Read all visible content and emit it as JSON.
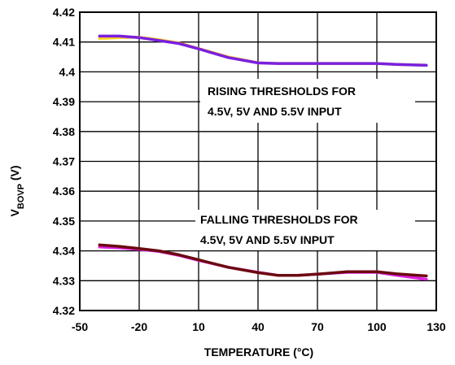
{
  "chart_data": {
    "type": "line",
    "title": "",
    "xlabel": "TEMPERATURE (°C)",
    "ylabel_main": "V",
    "ylabel_sub": "BOVP",
    "ylabel_unit": " (V)",
    "xlim": [
      -50,
      130
    ],
    "ylim": [
      4.32,
      4.42
    ],
    "x_ticks": [
      -50,
      -20,
      10,
      40,
      70,
      100,
      130
    ],
    "x_tick_labels": [
      "-50",
      "-20",
      "10",
      "40",
      "70",
      "100",
      "130"
    ],
    "y_ticks": [
      4.32,
      4.33,
      4.34,
      4.35,
      4.36,
      4.37,
      4.38,
      4.39,
      4.4,
      4.41,
      4.42
    ],
    "y_tick_labels": [
      "4.32",
      "4.33",
      "4.34",
      "4.35",
      "4.36",
      "4.37",
      "4.38",
      "4.39",
      "4.4",
      "4.41",
      "4.42"
    ],
    "grid": true,
    "series": [
      {
        "color": "#FFD21E",
        "x": [
          -40,
          -30,
          -20,
          -10,
          0,
          10,
          25,
          40,
          50,
          60,
          70,
          85,
          100,
          110,
          125
        ],
        "y": [
          4.4112,
          4.4115,
          4.4116,
          4.4108,
          4.4097,
          4.4078,
          4.405,
          4.403,
          4.4028,
          4.4028,
          4.4028,
          4.4028,
          4.4028,
          4.4025,
          4.4022
        ]
      },
      {
        "color": "#7A1FE0",
        "x": [
          -40,
          -30,
          -20,
          -10,
          0,
          10,
          25,
          40,
          50,
          60,
          70,
          85,
          100,
          110,
          125
        ],
        "y": [
          4.412,
          4.412,
          4.4115,
          4.4105,
          4.4095,
          4.4077,
          4.4048,
          4.403,
          4.4028,
          4.4028,
          4.4028,
          4.4028,
          4.4028,
          4.4025,
          4.4022
        ]
      },
      {
        "color": "#E020E0",
        "x": [
          -40,
          -30,
          -20,
          -10,
          0,
          10,
          25,
          40,
          50,
          60,
          70,
          85,
          100,
          110,
          125
        ],
        "y": [
          4.3413,
          4.341,
          4.3405,
          4.3398,
          4.3385,
          4.3368,
          4.3345,
          4.3328,
          4.3318,
          4.3318,
          4.3322,
          4.3328,
          4.3328,
          4.3318,
          4.3305
        ]
      },
      {
        "color": "#6B0A10",
        "x": [
          -40,
          -30,
          -20,
          -10,
          0,
          10,
          25,
          40,
          50,
          60,
          70,
          85,
          100,
          110,
          125
        ],
        "y": [
          4.342,
          4.3415,
          4.3408,
          4.34,
          4.3387,
          4.337,
          4.3345,
          4.3327,
          4.3318,
          4.3318,
          4.3322,
          4.333,
          4.333,
          4.3323,
          4.3316
        ]
      }
    ],
    "annotations": {
      "rising_line1": "RISING THRESHOLDS FOR",
      "rising_line2": "4.5V, 5V AND 5.5V INPUT",
      "falling_line1": "FALLING THRESHOLDS FOR",
      "falling_line2": "4.5V, 5V AND 5.5V INPUT"
    }
  }
}
